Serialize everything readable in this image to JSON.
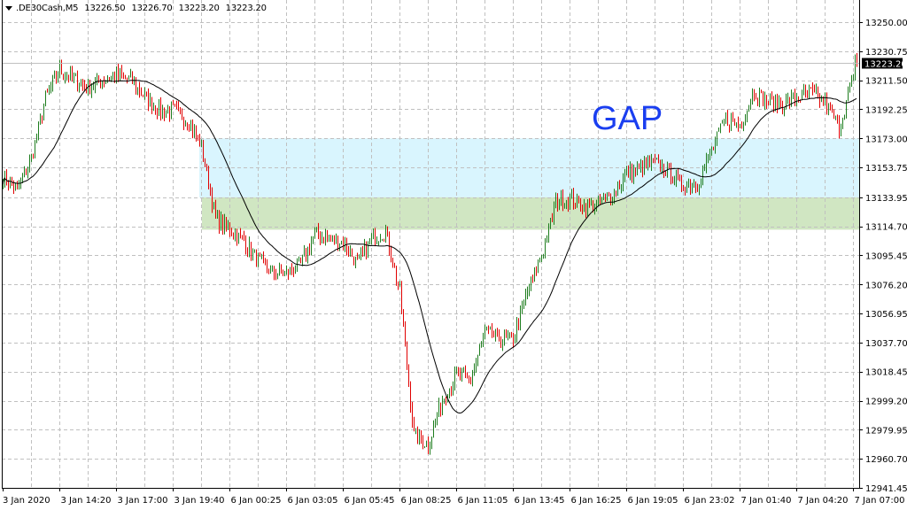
{
  "header": {
    "symbol": ".DE30Cash,M5",
    "open": "13226.50",
    "high": "13226.70",
    "low": "13223.20",
    "close": "13223.20"
  },
  "annotation": {
    "text": "GAP",
    "color": "#1a3ef0"
  },
  "chart_data": {
    "type": "ohlc-bar",
    "title": "",
    "timeframe": "M5",
    "ylim": [
      12941.45,
      13250.0
    ],
    "y_ticks": [
      "13250.00",
      "13230.75",
      "13211.50",
      "13192.25",
      "13173.00",
      "13153.75",
      "13133.95",
      "13114.70",
      "13095.45",
      "13076.20",
      "13056.95",
      "13037.70",
      "13018.45",
      "12999.20",
      "12979.95",
      "12960.70",
      "12941.45"
    ],
    "x_ticks": [
      "3 Jan 2020",
      "3 Jan 14:20",
      "3 Jan 17:00",
      "3 Jan 19:40",
      "6 Jan 00:25",
      "6 Jan 03:05",
      "6 Jan 05:45",
      "6 Jan 08:25",
      "6 Jan 11:05",
      "6 Jan 13:45",
      "6 Jan 16:25",
      "6 Jan 19:05",
      "6 Jan 23:02",
      "7 Jan 01:40",
      "7 Jan 04:20",
      "7 Jan 07:00"
    ],
    "grid": true,
    "approx_price_path": [
      13147.6,
      13138.8,
      13159.3,
      13200,
      13217.8,
      13212,
      13206,
      13212,
      13214.9,
      13212,
      13200,
      13191.5,
      13191.5,
      13185,
      13168,
      13120,
      13112.5,
      13105,
      13092,
      13084,
      13084,
      13089,
      13109.6,
      13107,
      13104,
      13090,
      13106,
      13112,
      13070,
      12976,
      12970,
      13000,
      13016,
      13013,
      13045,
      13040,
      13040,
      13071.5,
      13095,
      13130,
      13133,
      13128,
      13130,
      13135,
      13150,
      13153,
      13157,
      13150,
      13141.8,
      13143,
      13165,
      13186,
      13182,
      13204,
      13197,
      13196,
      13200,
      13203,
      13197,
      13180,
      13215
    ],
    "last_price": "13223.20",
    "zones": [
      {
        "from": 13173.0,
        "to": 13133.95,
        "color": "#d9f5fe"
      },
      {
        "from": 13133.95,
        "to": 13112.5,
        "color": "#d0e6c2"
      }
    ],
    "colors": {
      "up": "#1e7d1e",
      "down": "#e00000",
      "ma": "#000000",
      "grid": "#c0c0c0",
      "bid_line": "#c0c0c0"
    },
    "indicators": [
      "moving-average"
    ]
  }
}
